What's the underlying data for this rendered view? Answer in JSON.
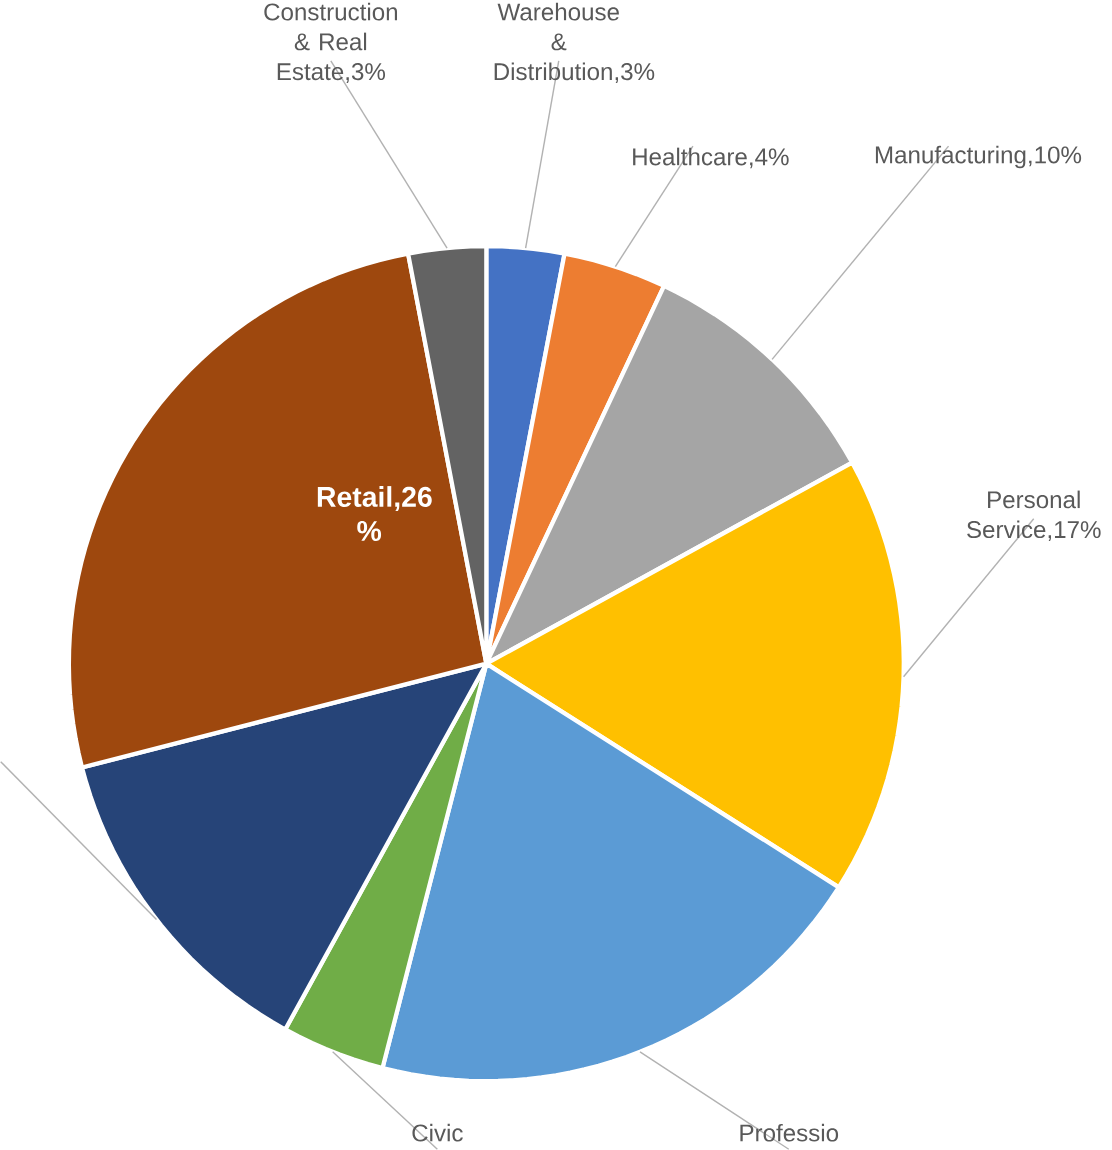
{
  "chart_data": {
    "type": "pie",
    "categories": [
      "Warehouse & Distribution",
      "Healthcare",
      "Manufacturing",
      "Personal Service",
      "Professio",
      "Civic",
      null,
      "Retail",
      "Construction & Real Estate"
    ],
    "values": [
      3,
      4,
      10,
      17,
      20,
      4,
      13,
      26,
      3
    ],
    "value_labels": [
      ",3%",
      ",4%",
      ",10%",
      ",17%",
      null,
      null,
      null,
      ",26 %",
      ",3%"
    ],
    "colors": [
      "#4472c4",
      "#ed7d31",
      "#a5a5a5",
      "#ffc000",
      "#5b9bd5",
      "#70ad47",
      "#264478",
      "#9e480e",
      "#636363"
    ]
  }
}
